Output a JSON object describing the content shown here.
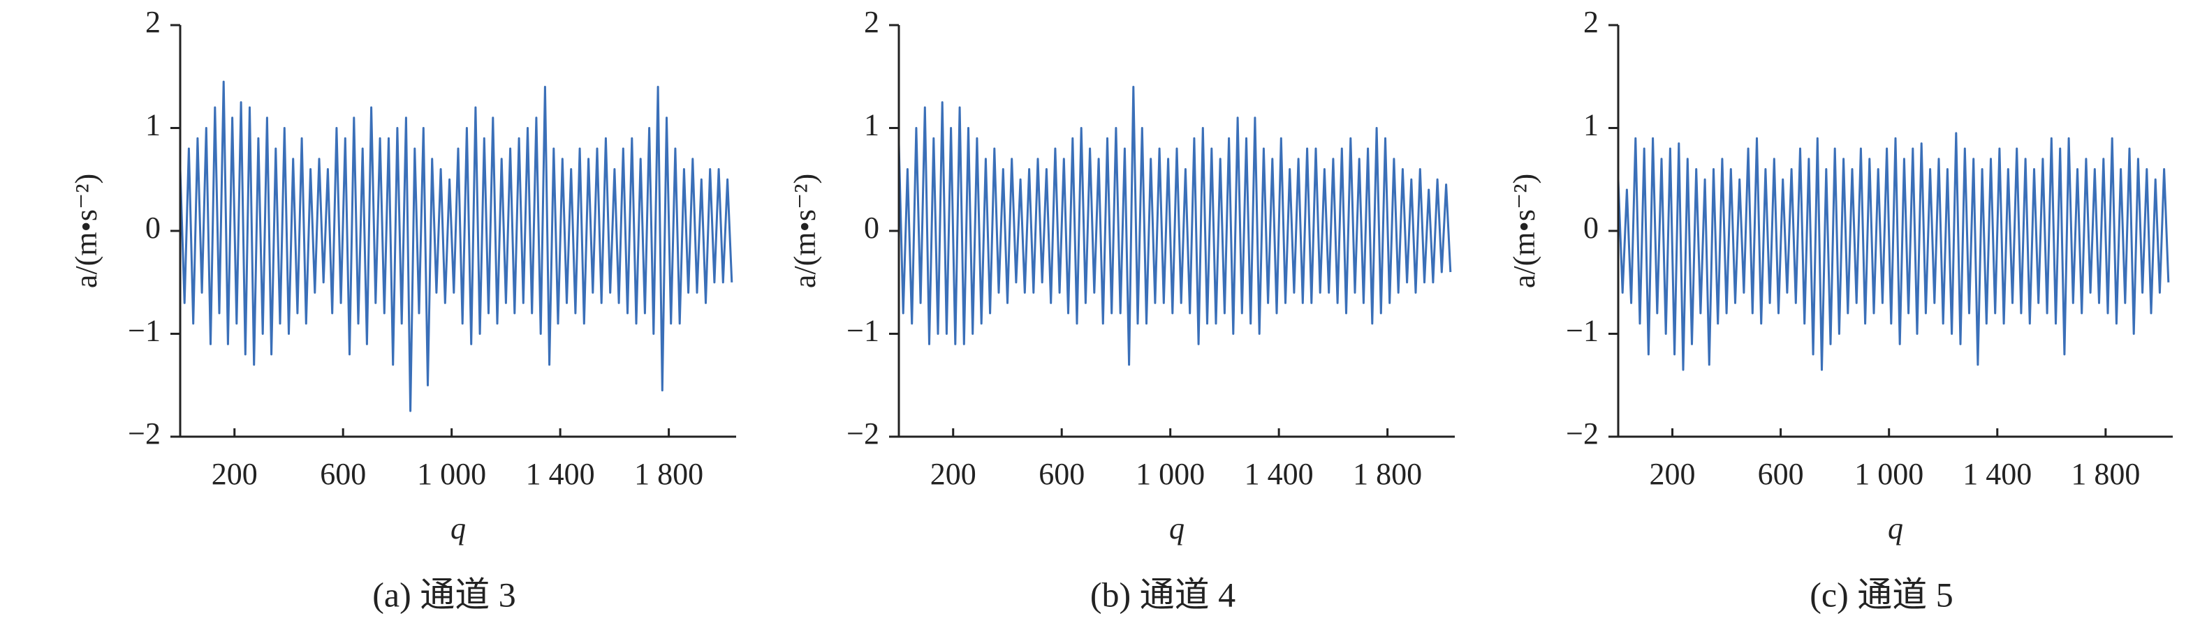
{
  "chart_data": [
    {
      "type": "line",
      "caption": "(a) 通道 3",
      "xlabel": "q",
      "ylabel": "a/(m•s⁻²)",
      "color": "#3a6fb8",
      "xlim": [
        0,
        2048
      ],
      "ylim": [
        -2,
        2
      ],
      "xticks": [
        200,
        600,
        {
          "value": 1000,
          "label": "1 000"
        },
        {
          "value": 1400,
          "label": "1 400"
        },
        {
          "value": 1800,
          "label": "1 800"
        }
      ],
      "yticks": [
        {
          "value": -2,
          "label": "−2"
        },
        {
          "value": -1,
          "label": "−1"
        },
        0,
        1,
        2
      ],
      "x": [
        0,
        16,
        32,
        48,
        64,
        80,
        96,
        112,
        128,
        144,
        160,
        176,
        192,
        208,
        224,
        240,
        256,
        272,
        288,
        304,
        320,
        336,
        352,
        368,
        384,
        400,
        416,
        432,
        448,
        464,
        480,
        496,
        512,
        528,
        544,
        560,
        576,
        592,
        608,
        624,
        640,
        656,
        672,
        688,
        704,
        720,
        736,
        752,
        768,
        784,
        800,
        816,
        832,
        848,
        864,
        880,
        896,
        912,
        928,
        944,
        960,
        976,
        992,
        1008,
        1024,
        1040,
        1056,
        1072,
        1088,
        1104,
        1120,
        1136,
        1152,
        1168,
        1184,
        1200,
        1216,
        1232,
        1248,
        1264,
        1280,
        1296,
        1312,
        1328,
        1344,
        1360,
        1376,
        1392,
        1408,
        1424,
        1440,
        1456,
        1472,
        1488,
        1504,
        1520,
        1536,
        1552,
        1568,
        1584,
        1600,
        1616,
        1632,
        1648,
        1664,
        1680,
        1696,
        1712,
        1728,
        1744,
        1760,
        1776,
        1792,
        1808,
        1824,
        1840,
        1856,
        1872,
        1888,
        1904,
        1920,
        1936,
        1952,
        1968,
        1984,
        2000,
        2016,
        2032
      ],
      "values": [
        0.6,
        -0.7,
        0.8,
        -0.9,
        0.9,
        -0.6,
        1.0,
        -1.1,
        1.2,
        -0.8,
        1.45,
        -1.1,
        1.1,
        -0.9,
        1.25,
        -1.2,
        1.2,
        -1.3,
        0.9,
        -1.0,
        1.1,
        -1.2,
        0.8,
        -0.9,
        1.0,
        -1.0,
        0.7,
        -0.8,
        0.9,
        -0.9,
        0.6,
        -0.6,
        0.7,
        -0.5,
        0.6,
        -0.8,
        1.0,
        -0.7,
        0.9,
        -1.2,
        1.1,
        -0.9,
        0.8,
        -1.1,
        1.2,
        -0.7,
        0.9,
        -0.8,
        0.9,
        -1.3,
        1.0,
        -0.9,
        1.1,
        -1.75,
        0.8,
        -0.8,
        1.0,
        -1.5,
        0.7,
        -0.6,
        0.6,
        -0.7,
        0.5,
        -0.6,
        0.8,
        -0.9,
        1.0,
        -1.1,
        1.2,
        -1.0,
        0.9,
        -0.8,
        1.1,
        -0.9,
        0.7,
        -0.7,
        0.8,
        -0.8,
        0.9,
        -0.7,
        1.0,
        -0.8,
        1.1,
        -1.0,
        1.4,
        -1.3,
        0.8,
        -0.9,
        0.7,
        -0.7,
        0.6,
        -0.8,
        0.8,
        -0.9,
        0.7,
        -0.6,
        0.8,
        -0.7,
        0.9,
        -0.6,
        0.6,
        -0.7,
        0.8,
        -0.8,
        0.9,
        -0.9,
        0.7,
        -0.8,
        1.0,
        -1.0,
        1.4,
        -1.55,
        1.1,
        -0.9,
        0.8,
        -0.9,
        0.6,
        -0.6,
        0.7,
        -0.6,
        0.5,
        -0.7,
        0.6,
        -0.5,
        0.6,
        -0.5,
        0.5,
        -0.5
      ]
    },
    {
      "type": "line",
      "caption": "(b) 通道 4",
      "xlabel": "q",
      "ylabel": "a/(m•s⁻²)",
      "color": "#3a6fb8",
      "xlim": [
        0,
        2048
      ],
      "ylim": [
        -2,
        2
      ],
      "xticks": [
        200,
        600,
        {
          "value": 1000,
          "label": "1 000"
        },
        {
          "value": 1400,
          "label": "1 400"
        },
        {
          "value": 1800,
          "label": "1 800"
        }
      ],
      "yticks": [
        {
          "value": -2,
          "label": "−2"
        },
        {
          "value": -1,
          "label": "−1"
        },
        0,
        1,
        2
      ],
      "x": [
        0,
        16,
        32,
        48,
        64,
        80,
        96,
        112,
        128,
        144,
        160,
        176,
        192,
        208,
        224,
        240,
        256,
        272,
        288,
        304,
        320,
        336,
        352,
        368,
        384,
        400,
        416,
        432,
        448,
        464,
        480,
        496,
        512,
        528,
        544,
        560,
        576,
        592,
        608,
        624,
        640,
        656,
        672,
        688,
        704,
        720,
        736,
        752,
        768,
        784,
        800,
        816,
        832,
        848,
        864,
        880,
        896,
        912,
        928,
        944,
        960,
        976,
        992,
        1008,
        1024,
        1040,
        1056,
        1072,
        1088,
        1104,
        1120,
        1136,
        1152,
        1168,
        1184,
        1200,
        1216,
        1232,
        1248,
        1264,
        1280,
        1296,
        1312,
        1328,
        1344,
        1360,
        1376,
        1392,
        1408,
        1424,
        1440,
        1456,
        1472,
        1488,
        1504,
        1520,
        1536,
        1552,
        1568,
        1584,
        1600,
        1616,
        1632,
        1648,
        1664,
        1680,
        1696,
        1712,
        1728,
        1744,
        1760,
        1776,
        1792,
        1808,
        1824,
        1840,
        1856,
        1872,
        1888,
        1904,
        1920,
        1936,
        1952,
        1968,
        1984,
        2000,
        2016,
        2032
      ],
      "values": [
        0.85,
        -0.8,
        0.6,
        -0.9,
        1.0,
        -0.7,
        1.2,
        -1.1,
        0.9,
        -1.0,
        1.25,
        -1.0,
        1.0,
        -1.1,
        1.2,
        -1.1,
        1.0,
        -1.0,
        0.9,
        -0.9,
        0.7,
        -0.8,
        0.8,
        -0.6,
        0.6,
        -0.7,
        0.7,
        -0.5,
        0.5,
        -0.6,
        0.6,
        -0.6,
        0.7,
        -0.5,
        0.6,
        -0.7,
        0.8,
        -0.6,
        0.7,
        -0.8,
        0.9,
        -0.9,
        1.0,
        -0.7,
        0.8,
        -0.6,
        0.7,
        -0.9,
        0.9,
        -0.8,
        1.0,
        -0.8,
        0.8,
        -1.3,
        1.4,
        -0.9,
        1.0,
        -0.9,
        0.7,
        -0.7,
        0.8,
        -0.7,
        0.7,
        -0.8,
        0.8,
        -0.7,
        0.6,
        -0.8,
        0.9,
        -1.1,
        1.0,
        -0.9,
        0.8,
        -0.9,
        0.7,
        -0.8,
        0.9,
        -1.0,
        1.1,
        -0.8,
        0.9,
        -0.9,
        1.1,
        -1.0,
        0.8,
        -0.7,
        0.7,
        -0.8,
        0.9,
        -0.7,
        0.6,
        -0.6,
        0.7,
        -0.7,
        0.8,
        -0.7,
        0.8,
        -0.6,
        0.6,
        -0.6,
        0.7,
        -0.7,
        0.8,
        -0.8,
        0.9,
        -0.6,
        0.7,
        -0.7,
        0.8,
        -0.9,
        1.0,
        -0.8,
        0.9,
        -0.7,
        0.7,
        -0.6,
        0.6,
        -0.5,
        0.5,
        -0.6,
        0.6,
        -0.5,
        0.4,
        -0.5,
        0.5,
        -0.4,
        0.45,
        -0.4
      ]
    },
    {
      "type": "line",
      "caption": "(c) 通道 5",
      "xlabel": "q",
      "ylabel": "a/(m•s⁻²)",
      "color": "#3a6fb8",
      "xlim": [
        0,
        2048
      ],
      "ylim": [
        -2,
        2
      ],
      "xticks": [
        200,
        600,
        {
          "value": 1000,
          "label": "1 000"
        },
        {
          "value": 1400,
          "label": "1 400"
        },
        {
          "value": 1800,
          "label": "1 800"
        }
      ],
      "yticks": [
        {
          "value": -2,
          "label": "−2"
        },
        {
          "value": -1,
          "label": "−1"
        },
        0,
        1,
        2
      ],
      "x": [
        0,
        16,
        32,
        48,
        64,
        80,
        96,
        112,
        128,
        144,
        160,
        176,
        192,
        208,
        224,
        240,
        256,
        272,
        288,
        304,
        320,
        336,
        352,
        368,
        384,
        400,
        416,
        432,
        448,
        464,
        480,
        496,
        512,
        528,
        544,
        560,
        576,
        592,
        608,
        624,
        640,
        656,
        672,
        688,
        704,
        720,
        736,
        752,
        768,
        784,
        800,
        816,
        832,
        848,
        864,
        880,
        896,
        912,
        928,
        944,
        960,
        976,
        992,
        1008,
        1024,
        1040,
        1056,
        1072,
        1088,
        1104,
        1120,
        1136,
        1152,
        1168,
        1184,
        1200,
        1216,
        1232,
        1248,
        1264,
        1280,
        1296,
        1312,
        1328,
        1344,
        1360,
        1376,
        1392,
        1408,
        1424,
        1440,
        1456,
        1472,
        1488,
        1504,
        1520,
        1536,
        1552,
        1568,
        1584,
        1600,
        1616,
        1632,
        1648,
        1664,
        1680,
        1696,
        1712,
        1728,
        1744,
        1760,
        1776,
        1792,
        1808,
        1824,
        1840,
        1856,
        1872,
        1888,
        1904,
        1920,
        1936,
        1952,
        1968,
        1984,
        2000,
        2016,
        2032
      ],
      "values": [
        0.5,
        -0.6,
        0.4,
        -0.7,
        0.9,
        -0.9,
        0.8,
        -1.2,
        0.9,
        -0.8,
        0.7,
        -1.0,
        0.8,
        -1.2,
        0.85,
        -1.35,
        0.7,
        -1.1,
        0.6,
        -0.8,
        0.5,
        -1.3,
        0.6,
        -0.9,
        0.7,
        -0.8,
        0.6,
        -0.7,
        0.5,
        -0.6,
        0.8,
        -0.8,
        0.9,
        -0.9,
        0.6,
        -0.7,
        0.7,
        -0.8,
        0.5,
        -0.6,
        0.6,
        -0.7,
        0.8,
        -0.9,
        0.7,
        -1.2,
        0.9,
        -1.35,
        0.6,
        -1.1,
        0.8,
        -1.0,
        0.7,
        -0.8,
        0.6,
        -0.7,
        0.8,
        -0.9,
        0.7,
        -0.8,
        0.6,
        -0.7,
        0.8,
        -0.9,
        0.9,
        -1.1,
        0.7,
        -0.8,
        0.8,
        -1.0,
        0.85,
        -0.8,
        0.6,
        -0.7,
        0.7,
        -0.9,
        0.6,
        -1.0,
        0.95,
        -1.1,
        0.8,
        -0.8,
        0.7,
        -1.3,
        0.6,
        -0.9,
        0.7,
        -0.8,
        0.8,
        -0.9,
        0.6,
        -0.7,
        0.8,
        -0.8,
        0.7,
        -0.9,
        0.6,
        -0.7,
        0.7,
        -0.8,
        0.9,
        -0.9,
        0.8,
        -1.2,
        0.9,
        -0.7,
        0.6,
        -0.8,
        0.7,
        -0.6,
        0.6,
        -0.7,
        0.7,
        -0.8,
        0.9,
        -0.9,
        0.6,
        -0.7,
        0.8,
        -1.0,
        0.7,
        -0.6,
        0.6,
        -0.8,
        0.5,
        -0.6,
        0.6,
        -0.5
      ]
    }
  ]
}
